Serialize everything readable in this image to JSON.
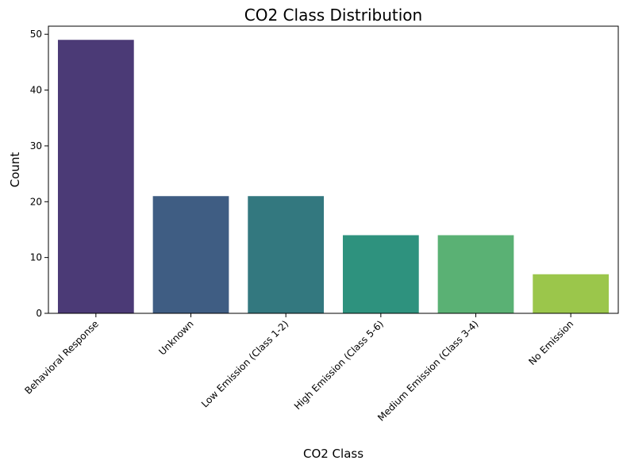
{
  "chart_data": {
    "type": "bar",
    "title": "CO2 Class Distribution",
    "xlabel": "CO2 Class",
    "ylabel": "Count",
    "categories": [
      "Behavioral Response",
      "Unknown",
      "Low Emission (Class 1-2)",
      "High Emission (Class 5-6)",
      "Medium Emission (Class 3-4)",
      "No Emission"
    ],
    "values": [
      49,
      21,
      21,
      14,
      14,
      7
    ],
    "colors": [
      "#4b3a76",
      "#3f5d83",
      "#33787f",
      "#2e927e",
      "#5ab174",
      "#9bc64b"
    ],
    "ylim": [
      0,
      51.45
    ],
    "yticks": [
      0,
      10,
      20,
      30,
      40,
      50
    ],
    "grid": false,
    "legend": "none"
  }
}
